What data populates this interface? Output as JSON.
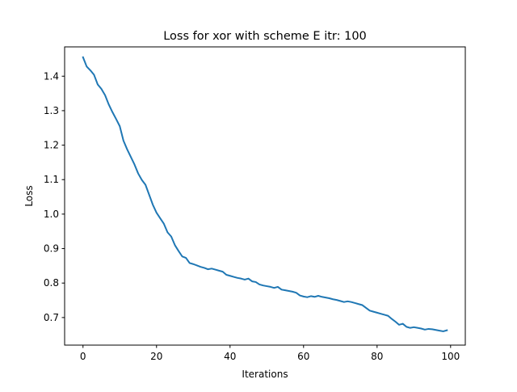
{
  "chart_data": {
    "type": "line",
    "title": "Loss for xor with scheme E itr: 100",
    "xlabel": "Iterations",
    "ylabel": "Loss",
    "xlim": [
      -5,
      104
    ],
    "ylim": [
      0.62,
      1.485
    ],
    "xticks": [
      0,
      20,
      40,
      60,
      80,
      100
    ],
    "yticks": [
      0.7,
      0.8,
      0.9,
      1.0,
      1.1,
      1.2,
      1.3,
      1.4
    ],
    "ytick_labels": [
      "0.7",
      "0.8",
      "0.9",
      "1.0",
      "1.1",
      "1.2",
      "1.3",
      "1.4"
    ],
    "grid": false,
    "series_color": "#1f77b4",
    "series": [
      {
        "name": "",
        "x": [
          0,
          1,
          2,
          3,
          4,
          5,
          6,
          7,
          8,
          9,
          10,
          11,
          12,
          13,
          14,
          15,
          16,
          17,
          18,
          19,
          20,
          21,
          22,
          23,
          24,
          25,
          26,
          27,
          28,
          29,
          30,
          31,
          32,
          33,
          34,
          35,
          36,
          37,
          38,
          39,
          40,
          41,
          42,
          43,
          44,
          45,
          46,
          47,
          48,
          49,
          50,
          51,
          52,
          53,
          54,
          55,
          56,
          57,
          58,
          59,
          60,
          61,
          62,
          63,
          64,
          65,
          66,
          67,
          68,
          69,
          70,
          71,
          72,
          73,
          74,
          75,
          76,
          77,
          78,
          79,
          80,
          81,
          82,
          83,
          84,
          85,
          86,
          87,
          88,
          89,
          90,
          91,
          92,
          93,
          94,
          95,
          96,
          97,
          98,
          99
        ],
        "values": [
          1.455,
          1.428,
          1.417,
          1.404,
          1.376,
          1.363,
          1.345,
          1.318,
          1.296,
          1.276,
          1.255,
          1.213,
          1.188,
          1.166,
          1.144,
          1.118,
          1.099,
          1.085,
          1.056,
          1.027,
          1.004,
          0.988,
          0.972,
          0.947,
          0.935,
          0.91,
          0.893,
          0.877,
          0.873,
          0.858,
          0.855,
          0.851,
          0.847,
          0.844,
          0.84,
          0.842,
          0.839,
          0.836,
          0.833,
          0.824,
          0.821,
          0.818,
          0.815,
          0.813,
          0.81,
          0.813,
          0.805,
          0.803,
          0.796,
          0.793,
          0.791,
          0.789,
          0.786,
          0.789,
          0.781,
          0.779,
          0.777,
          0.775,
          0.772,
          0.764,
          0.761,
          0.759,
          0.762,
          0.76,
          0.763,
          0.76,
          0.758,
          0.756,
          0.753,
          0.751,
          0.748,
          0.745,
          0.747,
          0.745,
          0.742,
          0.739,
          0.736,
          0.728,
          0.72,
          0.717,
          0.714,
          0.711,
          0.708,
          0.705,
          0.696,
          0.688,
          0.679,
          0.682,
          0.673,
          0.67,
          0.672,
          0.67,
          0.668,
          0.665,
          0.667,
          0.666,
          0.664,
          0.662,
          0.66,
          0.663
        ]
      }
    ]
  }
}
